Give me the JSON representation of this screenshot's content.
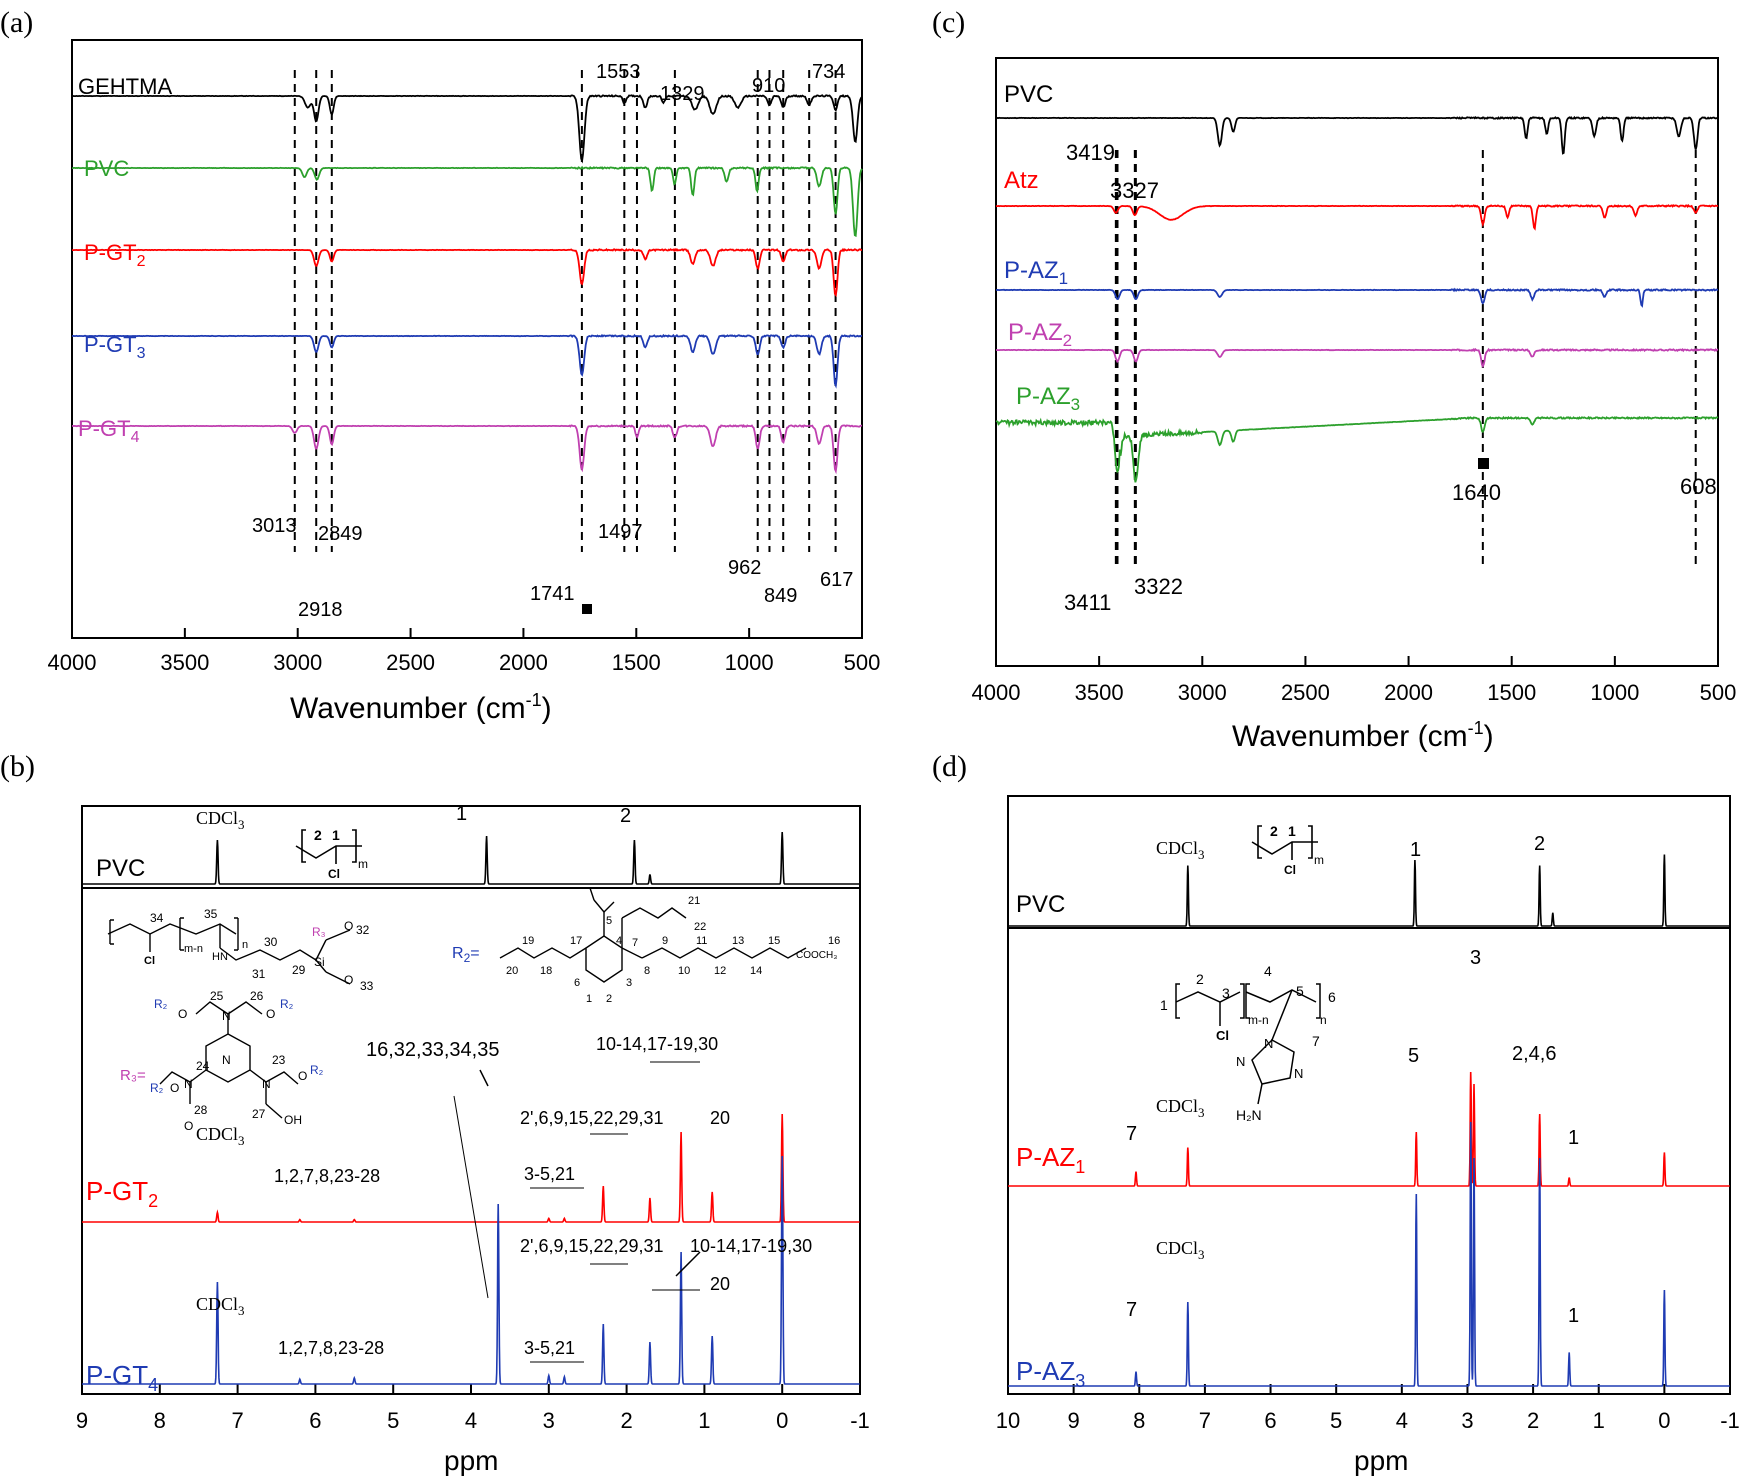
{
  "chart_data": [
    {
      "panel": "(a)",
      "type": "line",
      "xlabel": "Wavenumber (cm",
      "xlabel_sup": "-1",
      "xlabel_tail": ")",
      "xlim": [
        4000,
        500
      ],
      "xticks": [
        "4000",
        "3500",
        "3000",
        "2500",
        "2000",
        "1500",
        "1000",
        "500"
      ],
      "xtick_values": [
        4000,
        3500,
        3000,
        2500,
        2000,
        1500,
        1000,
        500
      ],
      "series": [
        {
          "name": "GEHTMA",
          "sub": "",
          "color": "#000000",
          "baseline": 0.92,
          "peaks": [
            [
              2955,
              0.05,
              18
            ],
            [
              2918,
              0.11,
              14
            ],
            [
              2849,
              0.08,
              12
            ],
            [
              1741,
              0.28,
              16
            ],
            [
              1553,
              0.03,
              10
            ],
            [
              1460,
              0.05,
              12
            ],
            [
              1380,
              0.03,
              10
            ],
            [
              1240,
              0.06,
              20
            ],
            [
              1160,
              0.08,
              20
            ],
            [
              1050,
              0.05,
              20
            ],
            [
              910,
              0.04,
              12
            ],
            [
              849,
              0.05,
              12
            ],
            [
              734,
              0.04,
              12
            ],
            [
              617,
              0.06,
              12
            ],
            [
              530,
              0.2,
              14
            ]
          ]
        },
        {
          "name": "PVC",
          "sub": "",
          "color": "#2ca02c",
          "baseline": 0.74,
          "xend": 1500,
          "peaks": [
            [
              2970,
              0.04,
              14
            ],
            [
              2915,
              0.05,
              14
            ],
            [
              1430,
              0.1,
              10
            ],
            [
              1330,
              0.07,
              10
            ],
            [
              1250,
              0.12,
              10
            ],
            [
              1100,
              0.06,
              12
            ],
            [
              965,
              0.1,
              10
            ],
            [
              690,
              0.08,
              14
            ],
            [
              617,
              0.2,
              12
            ],
            [
              530,
              0.3,
              14
            ]
          ]
        },
        {
          "name": "P-GT",
          "sub": "2",
          "color": "#ff0000",
          "baseline": 0.58,
          "peaks": [
            [
              2918,
              0.07,
              14
            ],
            [
              2849,
              0.05,
              12
            ],
            [
              1741,
              0.15,
              14
            ],
            [
              1460,
              0.04,
              12
            ],
            [
              1250,
              0.06,
              14
            ],
            [
              1160,
              0.07,
              16
            ],
            [
              962,
              0.08,
              12
            ],
            [
              849,
              0.05,
              12
            ],
            [
              690,
              0.08,
              14
            ],
            [
              617,
              0.2,
              12
            ]
          ]
        },
        {
          "name": "P-GT",
          "sub": "3",
          "color": "#1f3bb3",
          "baseline": 0.42,
          "peaks": [
            [
              2918,
              0.07,
              14
            ],
            [
              2849,
              0.05,
              12
            ],
            [
              1741,
              0.17,
              14
            ],
            [
              1460,
              0.05,
              12
            ],
            [
              1250,
              0.07,
              14
            ],
            [
              1160,
              0.08,
              16
            ],
            [
              962,
              0.08,
              12
            ],
            [
              849,
              0.05,
              12
            ],
            [
              690,
              0.08,
              14
            ],
            [
              617,
              0.22,
              12
            ]
          ]
        },
        {
          "name": "P-GT",
          "sub": "4",
          "color": "#c040b0",
          "baseline": 0.26,
          "peaks": [
            [
              3013,
              0.03,
              14
            ],
            [
              2918,
              0.1,
              14
            ],
            [
              2849,
              0.08,
              12
            ],
            [
              1741,
              0.19,
              14
            ],
            [
              1497,
              0.05,
              10
            ],
            [
              1329,
              0.05,
              12
            ],
            [
              1160,
              0.09,
              16
            ],
            [
              962,
              0.1,
              12
            ],
            [
              849,
              0.07,
              12
            ],
            [
              690,
              0.08,
              14
            ],
            [
              617,
              0.2,
              12
            ]
          ]
        }
      ],
      "annotations": [
        "3013",
        "2918",
        "2849",
        "1553",
        "1497",
        "1329",
        "1741",
        "910",
        "962",
        "849",
        "734",
        "617"
      ],
      "annotation_lines": [
        3013,
        2918,
        2849,
        1741,
        1553,
        1497,
        1329,
        962,
        910,
        849,
        734,
        617
      ]
    },
    {
      "panel": "(c)",
      "type": "line",
      "xlabel": "Wavenumber (cm",
      "xlabel_sup": "-1",
      "xlabel_tail": ")",
      "xlim": [
        4000,
        500
      ],
      "xticks": [
        "4000",
        "3500",
        "3000",
        "2500",
        "2000",
        "1500",
        "1000",
        "500"
      ],
      "xtick_values": [
        4000,
        3500,
        3000,
        2500,
        2000,
        1500,
        1000,
        500
      ],
      "series": [
        {
          "name": "PVC",
          "sub": "",
          "color": "#000000",
          "baseline": 0.94,
          "peaks": [
            [
              2915,
              0.12,
              14
            ],
            [
              2850,
              0.06,
              12
            ],
            [
              1430,
              0.09,
              10
            ],
            [
              1330,
              0.07,
              10
            ],
            [
              1250,
              0.16,
              10
            ],
            [
              1100,
              0.08,
              12
            ],
            [
              965,
              0.1,
              10
            ],
            [
              690,
              0.08,
              14
            ],
            [
              608,
              0.14,
              12
            ]
          ]
        },
        {
          "name": "Atz",
          "sub": "",
          "color": "#ff0000",
          "baseline": 0.76,
          "peaks": [
            [
              3419,
              0.03,
              14
            ],
            [
              3327,
              0.04,
              14
            ],
            [
              3150,
              0.06,
              80
            ],
            [
              1640,
              0.08,
              12
            ],
            [
              1520,
              0.05,
              10
            ],
            [
              1390,
              0.1,
              10
            ],
            [
              1050,
              0.05,
              12
            ],
            [
              900,
              0.04,
              12
            ],
            [
              608,
              0.03,
              12
            ]
          ]
        },
        {
          "name": "P-AZ",
          "sub": "1",
          "color": "#1f3bb3",
          "baseline": 0.62,
          "peaks": [
            [
              3411,
              0.04,
              14
            ],
            [
              3322,
              0.04,
              14
            ],
            [
              2915,
              0.03,
              16
            ],
            [
              1640,
              0.06,
              12
            ],
            [
              1400,
              0.04,
              12
            ],
            [
              1050,
              0.03,
              12
            ],
            [
              870,
              0.07,
              8
            ]
          ]
        },
        {
          "name": "P-AZ",
          "sub": "2",
          "color": "#c040b0",
          "baseline": 0.54,
          "peaks": [
            [
              3411,
              0.05,
              14
            ],
            [
              3322,
              0.05,
              14
            ],
            [
              2915,
              0.03,
              16
            ],
            [
              1640,
              0.07,
              12
            ],
            [
              1400,
              0.03,
              12
            ]
          ]
        },
        {
          "name": "P-AZ",
          "sub": "3",
          "color": "#2ca02c",
          "baseline": 0.42,
          "peaks": [
            [
              3411,
              0.22,
              16
            ],
            [
              3322,
              0.2,
              16
            ],
            [
              2915,
              0.06,
              14
            ],
            [
              2850,
              0.05,
              12
            ],
            [
              1640,
              0.06,
              12
            ],
            [
              1400,
              0.03,
              12
            ]
          ]
        }
      ],
      "annotations": [
        "3419",
        "3327",
        "3411",
        "3322",
        "1640",
        "608"
      ],
      "annotation_lines": [
        3419,
        3327,
        3411,
        3322,
        1640,
        608
      ]
    },
    {
      "panel": "(b)",
      "type": "line",
      "xlabel": "ppm",
      "xlim": [
        9,
        -1
      ],
      "xticks": [
        "9",
        "8",
        "7",
        "6",
        "5",
        "4",
        "3",
        "2",
        "1",
        "0",
        "-1"
      ],
      "xtick_values": [
        9,
        8,
        7,
        6,
        5,
        4,
        3,
        2,
        1,
        0,
        -1
      ],
      "series": [
        {
          "name": "PVC",
          "color": "#000000",
          "peaks": [
            [
              7.26,
              0.55
            ],
            [
              3.8,
              0.6
            ],
            [
              1.9,
              0.55
            ],
            [
              1.7,
              0.12
            ],
            [
              0.0,
              0.65
            ]
          ]
        },
        {
          "name": "P-GT",
          "sub": "2",
          "color": "#ff0000",
          "peaks": [
            [
              7.26,
              0.08
            ],
            [
              6.2,
              0.02
            ],
            [
              5.5,
              0.02
            ],
            [
              3.0,
              0.03
            ],
            [
              2.8,
              0.03
            ],
            [
              2.3,
              0.3
            ],
            [
              1.7,
              0.2
            ],
            [
              1.3,
              0.75
            ],
            [
              0.9,
              0.25
            ],
            [
              0.0,
              0.9
            ]
          ]
        },
        {
          "name": "P-GT",
          "sub": "4",
          "color": "#1f3bb3",
          "peaks": [
            [
              7.26,
              0.85
            ],
            [
              6.2,
              0.04
            ],
            [
              5.5,
              0.05
            ],
            [
              3.65,
              1.5
            ],
            [
              3.0,
              0.07
            ],
            [
              2.8,
              0.06
            ],
            [
              2.3,
              0.5
            ],
            [
              1.7,
              0.35
            ],
            [
              1.3,
              1.1
            ],
            [
              0.9,
              0.4
            ],
            [
              0.0,
              1.9
            ]
          ]
        }
      ],
      "labels": {
        "cdcl3": "CDCl",
        "cdcl3_sub": "3",
        "pvc_peak1": "1",
        "pvc_peak2": "2",
        "struct_m": "m",
        "struct_cl": "Cl",
        "r2": "R",
        "r2_sub": "2",
        "r2_eq": "=",
        "r3_eq": "R₃=",
        "gt2_label_a": "1,2,7,8,23-28",
        "gt2_label_b": "3-5,21",
        "gt2_label_c": "2',6,9,15,22,29,31",
        "gt2_label_d": "10-14,17-19,30",
        "gt2_label_e": "20",
        "gt4_label_a": "1,2,7,8,23-28",
        "gt4_label_b": "3-5,21",
        "gt4_label_c": "2',6,9,15,22,29,31",
        "gt4_label_d": "10-14,17-19,30",
        "gt4_label_e": "20",
        "label_16": "16,32,33,34,35"
      }
    },
    {
      "panel": "(d)",
      "type": "line",
      "xlabel": "ppm",
      "xlim": [
        10,
        -1
      ],
      "xticks": [
        "10",
        "9",
        "8",
        "7",
        "6",
        "5",
        "4",
        "3",
        "2",
        "1",
        "0",
        "-1"
      ],
      "xtick_values": [
        10,
        9,
        8,
        7,
        6,
        5,
        4,
        3,
        2,
        1,
        0,
        -1
      ],
      "series": [
        {
          "name": "PVC",
          "color": "#000000",
          "peaks": [
            [
              7.26,
              0.55
            ],
            [
              3.8,
              0.6
            ],
            [
              1.9,
              0.55
            ],
            [
              1.7,
              0.12
            ],
            [
              0.0,
              0.65
            ]
          ]
        },
        {
          "name": "P-AZ",
          "sub": "1",
          "color": "#ff0000",
          "peaks": [
            [
              8.05,
              0.12
            ],
            [
              7.26,
              0.32
            ],
            [
              3.78,
              0.45
            ],
            [
              2.95,
              0.95
            ],
            [
              2.9,
              0.85
            ],
            [
              1.9,
              0.6
            ],
            [
              1.45,
              0.07
            ],
            [
              0.0,
              0.28
            ]
          ]
        },
        {
          "name": "P-AZ",
          "sub": "3",
          "color": "#1f3bb3",
          "peaks": [
            [
              8.05,
              0.12
            ],
            [
              7.26,
              0.7
            ],
            [
              3.78,
              1.6
            ],
            [
              2.95,
              2.2
            ],
            [
              2.9,
              1.9
            ],
            [
              1.9,
              1.9
            ],
            [
              1.45,
              0.28
            ],
            [
              0.0,
              0.8
            ]
          ]
        }
      ],
      "labels": {
        "cdcl3": "CDCl",
        "cdcl3_sub": "3",
        "pvc_peak1": "1",
        "pvc_peak2": "2",
        "peak3": "3",
        "peak5": "5",
        "peak246": "2,4,6",
        "peak1": "1",
        "peak7": "7",
        "struct_m": "m",
        "struct_cl": "Cl",
        "struct_n": "n",
        "struct_mn": "m-n",
        "struct_nh2": "H₂N"
      }
    }
  ]
}
